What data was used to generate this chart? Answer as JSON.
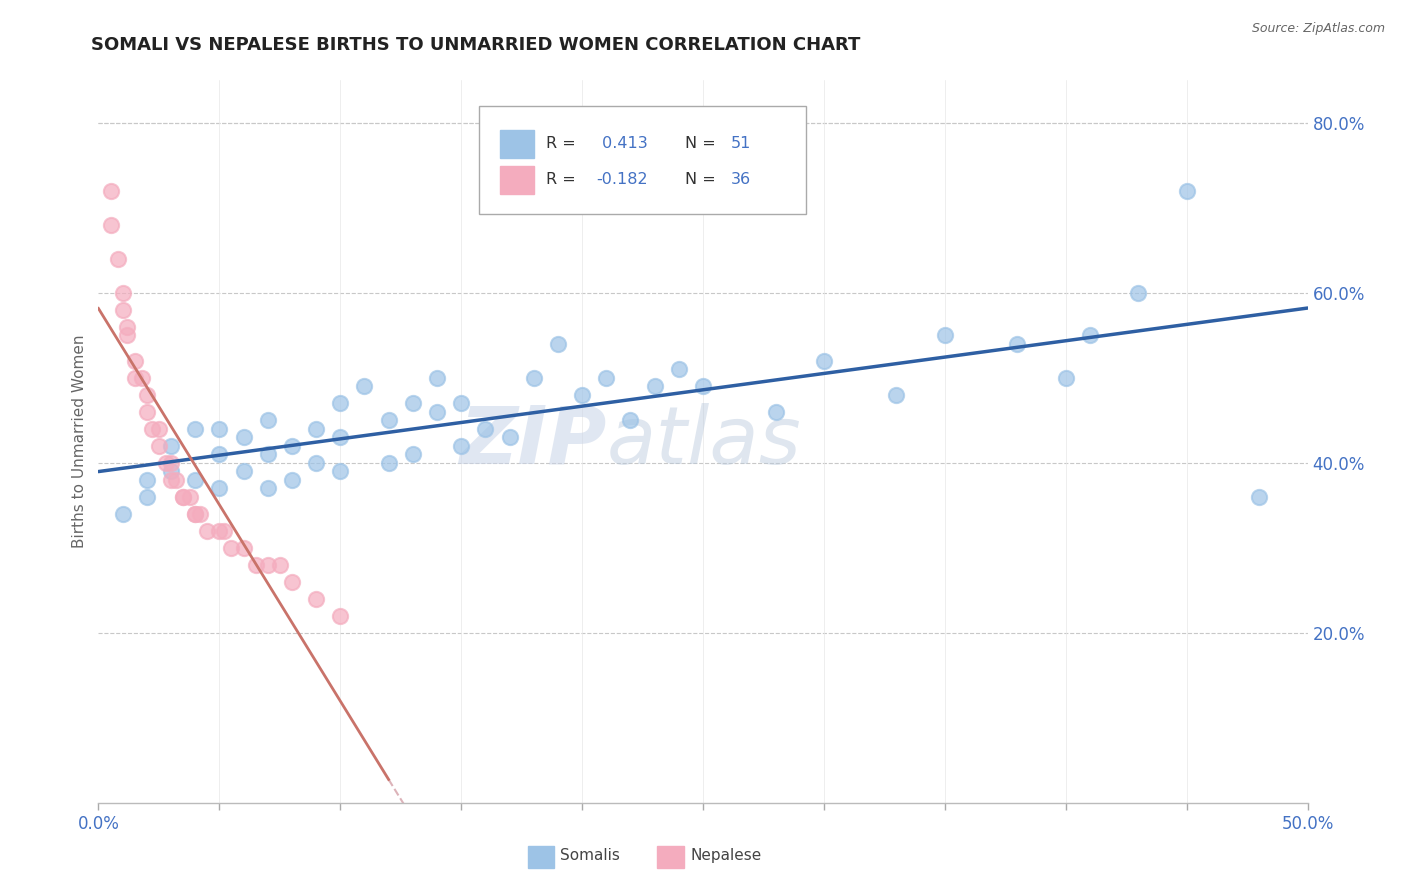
{
  "title": "SOMALI VS NEPALESE BIRTHS TO UNMARRIED WOMEN CORRELATION CHART",
  "source": "Source: ZipAtlas.com",
  "ylabel_left": "Births to Unmarried Women",
  "xlim": [
    0.0,
    0.5
  ],
  "ylim": [
    0.0,
    0.85
  ],
  "xticks": [
    0.0,
    0.05,
    0.1,
    0.15,
    0.2,
    0.25,
    0.3,
    0.35,
    0.4,
    0.45,
    0.5
  ],
  "yticks_right": [
    0.2,
    0.4,
    0.6,
    0.8
  ],
  "ytick_right_labels": [
    "20.0%",
    "40.0%",
    "60.0%",
    "80.0%"
  ],
  "somali_color": "#9DC3E6",
  "nepalese_color": "#F4ACBE",
  "somali_line_color": "#2E5FA3",
  "nepalese_line_color": "#C9736A",
  "nepalese_line_dash_color": "#D4A0A8",
  "legend_r_somali": "R =  0.413",
  "legend_n_somali": "N = 51",
  "legend_r_nepalese": "R = -0.182",
  "legend_n_nepalese": "N = 36",
  "legend_color": "#4472C4",
  "watermark_zip": "ZIP",
  "watermark_atlas": "atlas",
  "background_color": "#FFFFFF",
  "grid_color": "#C8C8C8",
  "somali_x": [
    0.01,
    0.02,
    0.02,
    0.03,
    0.03,
    0.04,
    0.04,
    0.05,
    0.05,
    0.05,
    0.06,
    0.06,
    0.07,
    0.07,
    0.07,
    0.08,
    0.08,
    0.09,
    0.09,
    0.1,
    0.1,
    0.1,
    0.11,
    0.12,
    0.12,
    0.13,
    0.13,
    0.14,
    0.14,
    0.15,
    0.15,
    0.16,
    0.17,
    0.18,
    0.19,
    0.2,
    0.21,
    0.22,
    0.23,
    0.24,
    0.25,
    0.28,
    0.3,
    0.33,
    0.35,
    0.38,
    0.4,
    0.41,
    0.43,
    0.45,
    0.48
  ],
  "somali_y": [
    0.34,
    0.38,
    0.36,
    0.42,
    0.39,
    0.44,
    0.38,
    0.41,
    0.37,
    0.44,
    0.39,
    0.43,
    0.37,
    0.41,
    0.45,
    0.42,
    0.38,
    0.4,
    0.44,
    0.43,
    0.47,
    0.39,
    0.49,
    0.45,
    0.4,
    0.47,
    0.41,
    0.46,
    0.5,
    0.42,
    0.47,
    0.44,
    0.43,
    0.5,
    0.54,
    0.48,
    0.5,
    0.45,
    0.49,
    0.51,
    0.49,
    0.46,
    0.52,
    0.48,
    0.55,
    0.54,
    0.5,
    0.55,
    0.6,
    0.72,
    0.36
  ],
  "nepalese_x": [
    0.005,
    0.005,
    0.008,
    0.01,
    0.01,
    0.012,
    0.012,
    0.015,
    0.015,
    0.018,
    0.02,
    0.02,
    0.022,
    0.025,
    0.025,
    0.028,
    0.03,
    0.03,
    0.032,
    0.035,
    0.035,
    0.038,
    0.04,
    0.04,
    0.042,
    0.045,
    0.05,
    0.052,
    0.055,
    0.06,
    0.065,
    0.07,
    0.075,
    0.08,
    0.09,
    0.1
  ],
  "nepalese_y": [
    0.72,
    0.68,
    0.64,
    0.6,
    0.58,
    0.56,
    0.55,
    0.52,
    0.5,
    0.5,
    0.48,
    0.46,
    0.44,
    0.44,
    0.42,
    0.4,
    0.4,
    0.38,
    0.38,
    0.36,
    0.36,
    0.36,
    0.34,
    0.34,
    0.34,
    0.32,
    0.32,
    0.32,
    0.3,
    0.3,
    0.28,
    0.28,
    0.28,
    0.26,
    0.24,
    0.22
  ]
}
